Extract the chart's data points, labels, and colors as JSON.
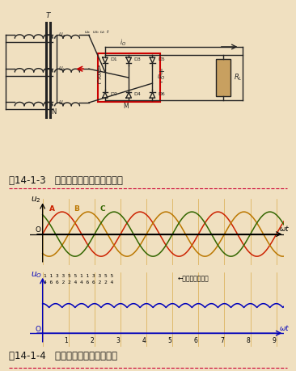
{
  "bg_color": "#f0e0c0",
  "title1": "图14-1-3   电阻负载三相桥式整流电路",
  "title2": "图14-1-4   三相桥式整流电路波形图",
  "phase_colors": [
    "#cc2200",
    "#bb7700",
    "#336600"
  ],
  "diode_label_row1": "1 1 3 3 5 5 1 1 3 3 5 5",
  "diode_label_row2": "4 6 6 2 2 4 4 6 6 2 2 4",
  "diode_label_note": "←导电二极管编号",
  "tick_labels": [
    "1",
    "2",
    "3",
    "4",
    "5",
    "6",
    "7",
    "8",
    "9"
  ],
  "rectified_color": "#0000bb",
  "axis_color_u2": "#000000",
  "axis_color_uo": "#0000bb",
  "grid_line_color": "#cc8800",
  "circuit_color": "#222222",
  "red_color": "#cc0000",
  "arrow_color": "#cc2200"
}
